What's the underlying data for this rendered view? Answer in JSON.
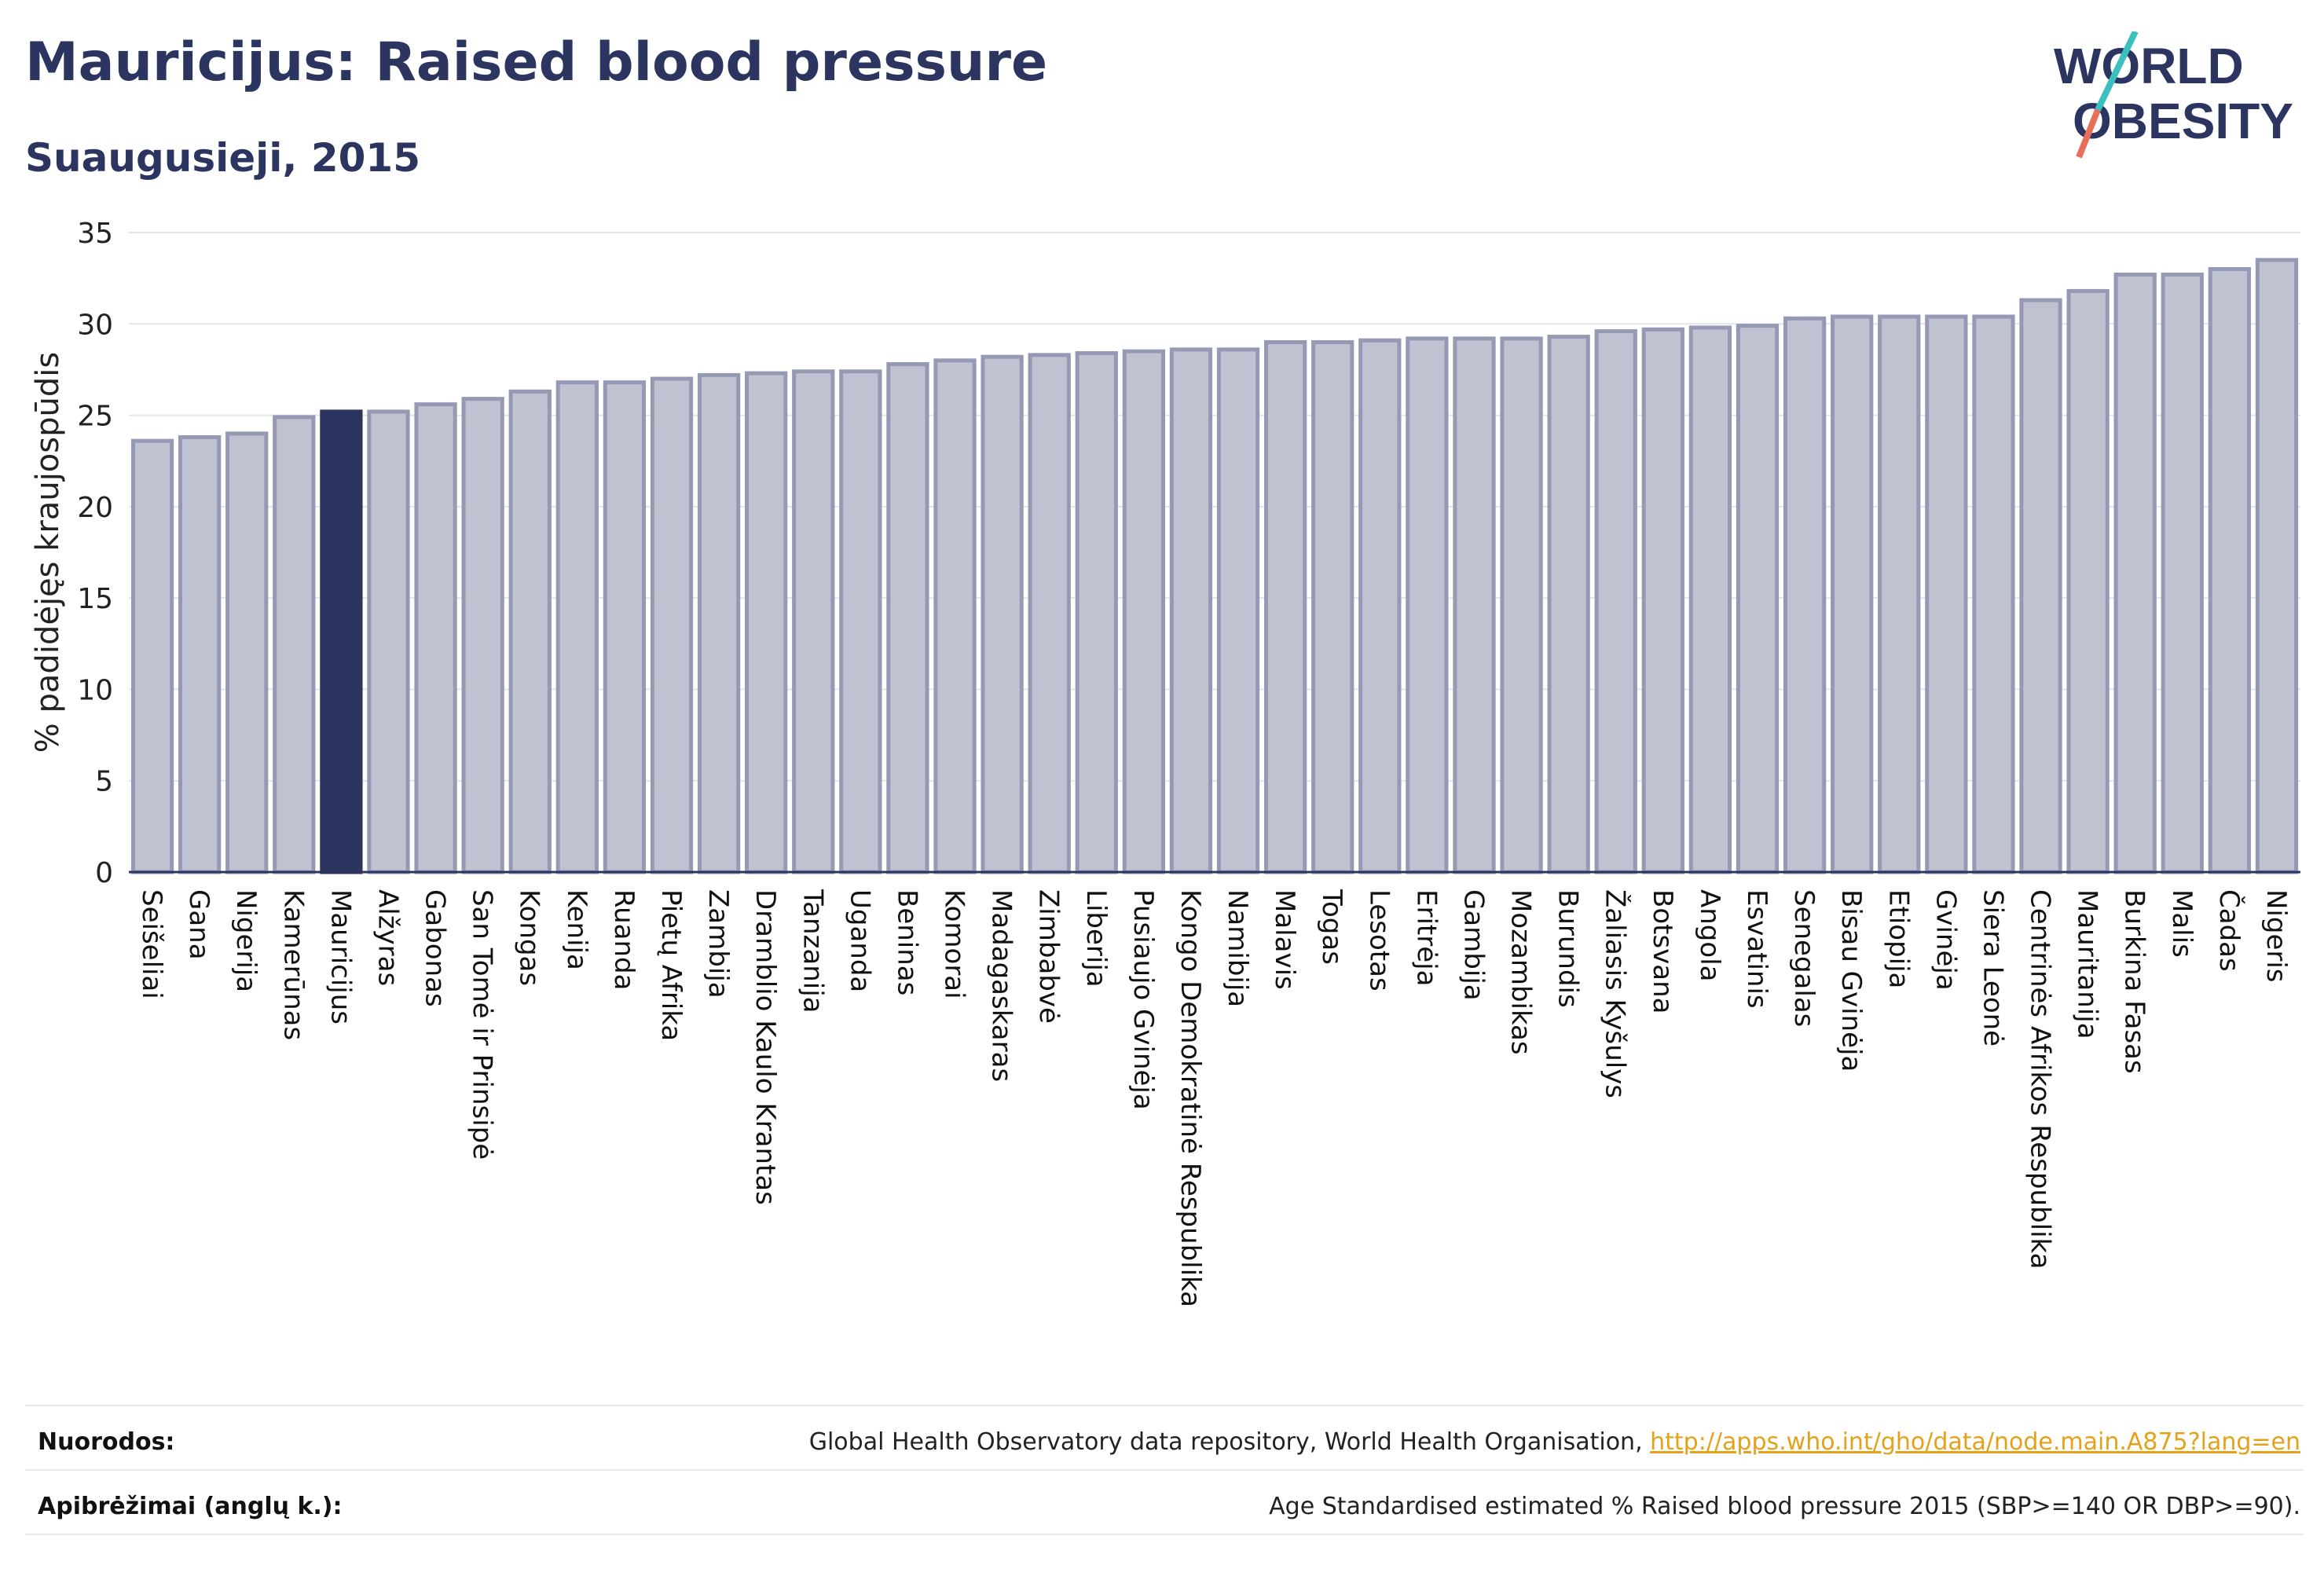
{
  "header": {
    "title": "Mauricijus: Raised blood pressure",
    "subtitle": "Suaugusieji, 2015"
  },
  "logo": {
    "line1": "WORLD",
    "line2": "OBESITY"
  },
  "footer": {
    "sources_label": "Nuorodos:",
    "sources_text": "Global Health Observatory data repository, World Health Organisation, ",
    "sources_link": "http://apps.who.int/gho/data/node.main.A875?lang=en",
    "definitions_label": "Apibrėžimai (anglų k.):",
    "definitions_text": "Age Standardised estimated % Raised blood pressure 2015 (SBP>=140 OR DBP>=90)."
  },
  "colors": {
    "highlight": "#2b3560",
    "bar_fill": "#bfc2d0",
    "bar_stroke": "#9599b3",
    "grid": "#e4e5ea",
    "logo_teal": "#3cbfbf",
    "logo_coral": "#e8705a"
  },
  "chart_data": {
    "type": "bar",
    "ylabel": "% padidėjęs kraujospūdis",
    "ylim": [
      0,
      35
    ],
    "yticks": [
      0,
      5,
      10,
      15,
      20,
      25,
      30,
      35
    ],
    "highlight": "Mauricijus",
    "grid": true,
    "categories": [
      "Seišeliai",
      "Gana",
      "Nigerija",
      "Kamerūnas",
      "Mauricijus",
      "Alžyras",
      "Gabonas",
      "San Tomė ir Prinsipė",
      "Kongas",
      "Kenija",
      "Ruanda",
      "Pietų Afrika",
      "Zambija",
      "Dramblio Kaulo Krantas",
      "Tanzanija",
      "Uganda",
      "Beninas",
      "Komorai",
      "Madagaskaras",
      "Zimbabvė",
      "Liberija",
      "Pusiaujo Gvinėja",
      "Kongo Demokratinė Respublika",
      "Namibija",
      "Malavis",
      "Togas",
      "Lesotas",
      "Eritrėja",
      "Gambija",
      "Mozambikas",
      "Burundis",
      "Žaliasis Kyšulys",
      "Botsvana",
      "Angola",
      "Esvatinis",
      "Senegalas",
      "Bisau Gvinėja",
      "Etiopija",
      "Gvinėja",
      "Siera Leonė",
      "Centrinės Afrikos Respublika",
      "Mauritanija",
      "Burkina Fasas",
      "Malis",
      "Čadas",
      "Nigeris"
    ],
    "values": [
      23.6,
      23.8,
      24.0,
      24.9,
      25.2,
      25.2,
      25.6,
      25.9,
      26.3,
      26.8,
      26.8,
      27.0,
      27.2,
      27.3,
      27.4,
      27.4,
      27.8,
      28.0,
      28.2,
      28.3,
      28.4,
      28.5,
      28.6,
      28.6,
      29.0,
      29.0,
      29.1,
      29.2,
      29.2,
      29.2,
      29.3,
      29.6,
      29.7,
      29.8,
      29.9,
      30.3,
      30.4,
      30.4,
      30.4,
      30.4,
      31.3,
      31.8,
      32.7,
      32.7,
      33.0,
      33.5
    ]
  }
}
